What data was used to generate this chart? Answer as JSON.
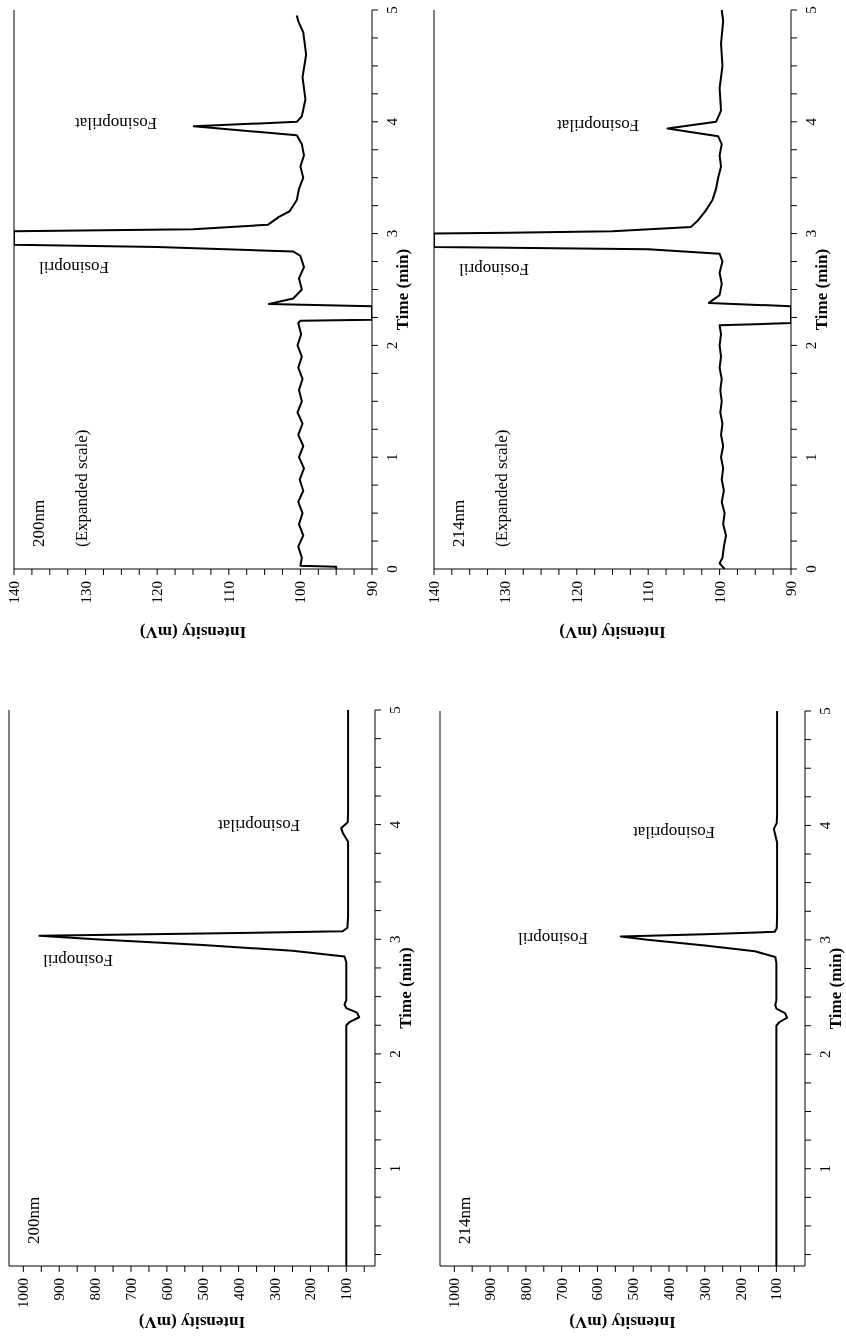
{
  "chart_data": [
    {
      "type": "line",
      "xlabel": "Intensity (mV)",
      "ylabel": "Time (min)",
      "color": "#000000",
      "xlim": [
        1040,
        20
      ],
      "ylim": [
        0.15,
        5
      ],
      "xticks": [
        1000,
        {
          "value": 950,
          "label": null
        },
        900,
        {
          "value": 850,
          "label": null
        },
        800,
        {
          "value": 750,
          "label": null
        },
        700,
        {
          "value": 650,
          "label": null
        },
        600,
        {
          "value": 550,
          "label": null
        },
        500,
        {
          "value": 450,
          "label": null
        },
        400,
        {
          "value": 350,
          "label": null
        },
        300,
        {
          "value": 250,
          "label": null
        },
        200,
        {
          "value": 150,
          "label": null
        },
        100,
        {
          "value": 50,
          "label": null
        }
      ],
      "yticks": [
        {
          "value": 0.25,
          "label": null
        },
        {
          "value": 0.5,
          "label": null
        },
        {
          "value": 0.75,
          "label": null
        },
        1,
        {
          "value": 1.25,
          "label": null
        },
        {
          "value": 1.5,
          "label": null
        },
        {
          "value": 1.75,
          "label": null
        },
        2,
        {
          "value": 2.25,
          "label": null
        },
        {
          "value": 2.5,
          "label": null
        },
        {
          "value": 2.75,
          "label": null
        },
        3,
        {
          "value": 3.25,
          "label": null
        },
        {
          "value": 3.5,
          "label": null
        },
        {
          "value": 3.75,
          "label": null
        },
        4,
        {
          "value": 4.25,
          "label": null
        },
        {
          "value": 4.5,
          "label": null
        },
        {
          "value": 4.75,
          "label": null
        },
        5
      ],
      "x": [
        100,
        100,
        100,
        100,
        100,
        100,
        90,
        64,
        70,
        100,
        105,
        100,
        100,
        100,
        105,
        250,
        500,
        800,
        955,
        500,
        110,
        97,
        95,
        95,
        95,
        110,
        114,
        96,
        95,
        95,
        95
      ],
      "values": [
        0.15,
        0.5,
        1.0,
        1.5,
        2.0,
        2.25,
        2.28,
        2.32,
        2.36,
        2.4,
        2.43,
        2.47,
        2.6,
        2.8,
        2.85,
        2.9,
        2.95,
        3.0,
        3.03,
        3.05,
        3.07,
        3.1,
        3.2,
        3.5,
        3.85,
        3.93,
        3.97,
        4.02,
        4.1,
        4.5,
        5.0
      ],
      "annotations": [
        "200nm",
        "Fosinopril",
        "Fosinoprilat"
      ]
    },
    {
      "type": "line",
      "xlabel": "Intensity (mV)",
      "ylabel": "Time (min)",
      "color": "#000000",
      "xlim": [
        140,
        90
      ],
      "ylim": [
        0,
        5
      ],
      "xticks": [
        140,
        {
          "value": 137.5,
          "label": null
        },
        {
          "value": 135,
          "label": null
        },
        {
          "value": 132.5,
          "label": null
        },
        130,
        {
          "value": 127.5,
          "label": null
        },
        {
          "value": 125,
          "label": null
        },
        {
          "value": 122.5,
          "label": null
        },
        120,
        {
          "value": 117.5,
          "label": null
        },
        {
          "value": 115,
          "label": null
        },
        {
          "value": 112.5,
          "label": null
        },
        110,
        {
          "value": 107.5,
          "label": null
        },
        {
          "value": 105,
          "label": null
        },
        {
          "value": 102.5,
          "label": null
        },
        100,
        {
          "value": 97.5,
          "label": null
        },
        {
          "value": 95,
          "label": null
        },
        {
          "value": 92.5,
          "label": null
        },
        90
      ],
      "yticks": [
        0,
        {
          "value": 0.25,
          "label": null
        },
        {
          "value": 0.5,
          "label": null
        },
        {
          "value": 0.75,
          "label": null
        },
        1,
        {
          "value": 1.25,
          "label": null
        },
        {
          "value": 1.5,
          "label": null
        },
        {
          "value": 1.75,
          "label": null
        },
        2,
        {
          "value": 2.25,
          "label": null
        },
        {
          "value": 2.5,
          "label": null
        },
        {
          "value": 2.75,
          "label": null
        },
        3,
        {
          "value": 3.25,
          "label": null
        },
        {
          "value": 3.5,
          "label": null
        },
        {
          "value": 3.75,
          "label": null
        },
        4,
        {
          "value": 4.25,
          "label": null
        },
        {
          "value": 4.5,
          "label": null
        },
        {
          "value": 4.75,
          "label": null
        },
        5
      ],
      "x": [
        95,
        95,
        100,
        99.8,
        100.3,
        99.6,
        100.2,
        99.7,
        100.3,
        99.6,
        100.1,
        99.5,
        100.2,
        99.6,
        100.3,
        99.7,
        100.4,
        99.8,
        100.2,
        99.7,
        100.3,
        99.8,
        100.4,
        99.9,
        100.3,
        100,
        90,
        90,
        104.4,
        101,
        99.8,
        100.2,
        99.5,
        100,
        101,
        120,
        140,
        140,
        115,
        104.5,
        103,
        101.5,
        100.5,
        100.2,
        99.6,
        100,
        99.5,
        99.8,
        100.5,
        114.9,
        100.5,
        99.8,
        99.3,
        99.7,
        99.2,
        99.6,
        100.3,
        100.5
      ],
      "values": [
        0,
        0.02,
        0.03,
        0.1,
        0.2,
        0.3,
        0.4,
        0.5,
        0.6,
        0.7,
        0.8,
        0.9,
        1.0,
        1.1,
        1.2,
        1.3,
        1.4,
        1.5,
        1.6,
        1.7,
        1.8,
        1.9,
        2.0,
        2.1,
        2.2,
        2.22,
        2.23,
        2.35,
        2.37,
        2.42,
        2.5,
        2.6,
        2.7,
        2.8,
        2.84,
        2.88,
        2.9,
        3.02,
        3.04,
        3.08,
        3.15,
        3.2,
        3.3,
        3.4,
        3.5,
        3.6,
        3.7,
        3.8,
        3.88,
        3.96,
        4.0,
        4.05,
        4.2,
        4.4,
        4.6,
        4.8,
        4.9,
        4.95
      ],
      "annotations": [
        "200nm",
        "(Expanded scale)",
        "Fosinopril",
        "Fosinoprilat"
      ]
    },
    {
      "type": "line",
      "xlabel": "Intensity (mV)",
      "ylabel": "Time (min)",
      "color": "#000000",
      "xlim": [
        1040,
        20
      ],
      "ylim": [
        0.15,
        5
      ],
      "xticks": [
        1000,
        {
          "value": 950,
          "label": null
        },
        900,
        {
          "value": 850,
          "label": null
        },
        800,
        {
          "value": 750,
          "label": null
        },
        700,
        {
          "value": 650,
          "label": null
        },
        600,
        {
          "value": 550,
          "label": null
        },
        500,
        {
          "value": 450,
          "label": null
        },
        400,
        {
          "value": 350,
          "label": null
        },
        300,
        {
          "value": 250,
          "label": null
        },
        200,
        {
          "value": 150,
          "label": null
        },
        100,
        {
          "value": 50,
          "label": null
        }
      ],
      "yticks": [
        {
          "value": 0.25,
          "label": null
        },
        {
          "value": 0.5,
          "label": null
        },
        {
          "value": 0.75,
          "label": null
        },
        1,
        {
          "value": 1.25,
          "label": null
        },
        {
          "value": 1.5,
          "label": null
        },
        {
          "value": 1.75,
          "label": null
        },
        2,
        {
          "value": 2.25,
          "label": null
        },
        {
          "value": 2.5,
          "label": null
        },
        {
          "value": 2.75,
          "label": null
        },
        3,
        {
          "value": 3.25,
          "label": null
        },
        {
          "value": 3.5,
          "label": null
        },
        {
          "value": 3.75,
          "label": null
        },
        4,
        {
          "value": 4.25,
          "label": null
        },
        {
          "value": 4.5,
          "label": null
        },
        {
          "value": 4.75,
          "label": null
        },
        5
      ],
      "x": [
        100,
        100,
        100,
        100,
        100,
        100,
        92,
        70,
        76,
        100,
        103,
        100,
        100,
        100,
        103,
        160,
        300,
        460,
        535,
        300,
        105,
        99,
        98,
        98,
        98,
        104,
        107,
        99,
        98,
        98,
        98
      ],
      "values": [
        0.15,
        0.5,
        1.0,
        1.5,
        2.0,
        2.25,
        2.28,
        2.32,
        2.36,
        2.4,
        2.43,
        2.47,
        2.6,
        2.8,
        2.85,
        2.9,
        2.95,
        3.0,
        3.03,
        3.05,
        3.07,
        3.1,
        3.2,
        3.5,
        3.85,
        3.93,
        3.97,
        4.02,
        4.1,
        4.5,
        5.0
      ],
      "annotations": [
        "214nm",
        "Fosinopril",
        "Fosinoprilat"
      ]
    },
    {
      "type": "line",
      "xlabel": "Intensity (mV)",
      "ylabel": "Time (min)",
      "color": "#000000",
      "xlim": [
        140,
        90
      ],
      "ylim": [
        0,
        5
      ],
      "xticks": [
        140,
        {
          "value": 137.5,
          "label": null
        },
        {
          "value": 135,
          "label": null
        },
        {
          "value": 132.5,
          "label": null
        },
        130,
        {
          "value": 127.5,
          "label": null
        },
        {
          "value": 125,
          "label": null
        },
        {
          "value": 122.5,
          "label": null
        },
        120,
        {
          "value": 117.5,
          "label": null
        },
        {
          "value": 115,
          "label": null
        },
        {
          "value": 112.5,
          "label": null
        },
        110,
        {
          "value": 107.5,
          "label": null
        },
        {
          "value": 105,
          "label": null
        },
        {
          "value": 102.5,
          "label": null
        },
        100,
        {
          "value": 97.5,
          "label": null
        },
        {
          "value": 95,
          "label": null
        },
        {
          "value": 92.5,
          "label": null
        },
        90
      ],
      "yticks": [
        0,
        {
          "value": 0.25,
          "label": null
        },
        {
          "value": 0.5,
          "label": null
        },
        {
          "value": 0.75,
          "label": null
        },
        1,
        {
          "value": 1.25,
          "label": null
        },
        {
          "value": 1.5,
          "label": null
        },
        {
          "value": 1.75,
          "label": null
        },
        2,
        {
          "value": 2.25,
          "label": null
        },
        {
          "value": 2.5,
          "label": null
        },
        {
          "value": 2.75,
          "label": null
        },
        3,
        {
          "value": 3.25,
          "label": null
        },
        {
          "value": 3.5,
          "label": null
        },
        {
          "value": 3.75,
          "label": null
        },
        4,
        {
          "value": 4.25,
          "label": null
        },
        {
          "value": 4.5,
          "label": null
        },
        {
          "value": 4.75,
          "label": null
        },
        5
      ],
      "x": [
        99.3,
        100,
        99.6,
        99.4,
        99.1,
        99.5,
        99.3,
        99.7,
        99.4,
        99.7,
        99.5,
        99.8,
        99.5,
        99.8,
        99.6,
        99.9,
        99.7,
        99.9,
        99.7,
        100,
        99.8,
        100,
        99.8,
        100,
        90,
        90,
        101.5,
        100,
        99.7,
        100,
        99.6,
        100,
        110,
        140,
        140,
        115,
        104,
        103,
        102,
        101,
        100.5,
        100.2,
        99.8,
        100,
        99.7,
        100.2,
        107.3,
        100.5,
        99.8,
        100,
        99.6,
        99.8,
        99.5,
        99.7
      ],
      "values": [
        0,
        0.05,
        0.1,
        0.2,
        0.3,
        0.4,
        0.5,
        0.6,
        0.7,
        0.8,
        0.9,
        1.0,
        1.1,
        1.2,
        1.3,
        1.4,
        1.5,
        1.6,
        1.7,
        1.8,
        1.9,
        2.0,
        2.1,
        2.18,
        2.2,
        2.35,
        2.38,
        2.45,
        2.55,
        2.65,
        2.75,
        2.82,
        2.86,
        2.88,
        3.0,
        3.02,
        3.06,
        3.12,
        3.2,
        3.3,
        3.4,
        3.5,
        3.6,
        3.7,
        3.8,
        3.87,
        3.94,
        4.0,
        4.1,
        4.3,
        4.5,
        4.7,
        4.9,
        5.0
      ],
      "annotations": [
        "214nm",
        "(Expanded scale)",
        "Fosinopril",
        "Fosinoprilat"
      ]
    }
  ]
}
